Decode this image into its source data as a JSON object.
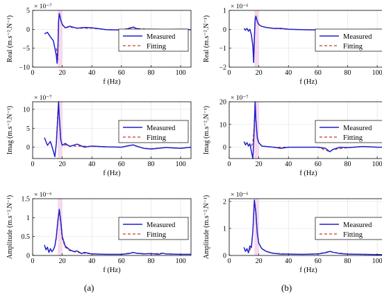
{
  "figure": {
    "panel_letters": [
      "(a)",
      "(b)"
    ],
    "legend": {
      "measured": "Measured",
      "fitting": "Fitting"
    },
    "colors": {
      "measured": "#1f1fcf",
      "fitting": "#c0392b",
      "band": "#f2b8e0"
    }
  },
  "chart_data": [
    {
      "type": "line",
      "column": "a",
      "ylabel": "Real (m.s⁻².N⁻¹)",
      "xlabel": "f (Hz)",
      "exponent": "× 10⁻⁷",
      "xlim": [
        0,
        107
      ],
      "ylim": [
        -10,
        5
      ],
      "xticks": [
        0,
        20,
        40,
        60,
        80,
        100
      ],
      "yticks": [
        -10,
        -5,
        0,
        5
      ],
      "grid": true,
      "legend_position": "right-center",
      "series": [
        {
          "name": "Measured",
          "x": [
            8,
            10,
            12,
            14,
            15,
            16,
            16.5,
            17,
            17.5,
            18,
            19,
            20,
            22,
            25,
            30,
            35,
            40,
            50,
            60,
            65,
            68,
            70,
            75,
            80,
            90,
            100,
            107
          ],
          "y": [
            -1.2,
            -0.8,
            -2,
            -3,
            -5,
            -7,
            -9,
            -6,
            2,
            4.2,
            2.5,
            1.3,
            0.4,
            0.8,
            0.3,
            0.5,
            0.4,
            -0.1,
            -0.2,
            0.2,
            0.6,
            0.2,
            -0.1,
            0,
            -0.1,
            0,
            -0.1
          ]
        },
        {
          "name": "Fitting",
          "x": [
            16,
            17,
            17.5,
            18,
            19,
            20,
            22,
            25,
            30,
            40,
            50,
            60,
            68,
            70,
            80,
            90,
            100,
            107
          ],
          "y": [
            -5,
            -8,
            2,
            4,
            2.5,
            1.2,
            0.4,
            0.6,
            0.3,
            0.3,
            -0.1,
            -0.2,
            0.6,
            0.2,
            0,
            -0.1,
            0,
            -0.1
          ]
        }
      ]
    },
    {
      "type": "line",
      "column": "a",
      "ylabel": "Imag (m.s⁻².N⁻¹)",
      "xlabel": "f (Hz)",
      "exponent": "× 10⁻⁷",
      "xlim": [
        0,
        107
      ],
      "ylim": [
        -3,
        12
      ],
      "xticks": [
        0,
        20,
        40,
        60,
        80,
        100
      ],
      "yticks": [
        0,
        5,
        10
      ],
      "grid": true,
      "legend_position": "right-center",
      "series": [
        {
          "name": "Measured",
          "x": [
            8,
            10,
            12,
            14,
            15,
            16,
            17,
            17.5,
            18,
            19,
            20,
            22,
            25,
            30,
            35,
            40,
            50,
            60,
            65,
            68,
            70,
            75,
            80,
            90,
            100,
            107
          ],
          "y": [
            2.5,
            0.5,
            1.5,
            -1,
            -2.5,
            1,
            8,
            12,
            8,
            2,
            0.5,
            1,
            0.2,
            0.8,
            0,
            0.3,
            0.1,
            0,
            0.4,
            0.6,
            0.3,
            -0.3,
            -0.5,
            -0.1,
            -0.3,
            0
          ]
        },
        {
          "name": "Fitting",
          "x": [
            16,
            17,
            17.5,
            18,
            19,
            20,
            22,
            25,
            30,
            40,
            50,
            60,
            68,
            70,
            75,
            80,
            90,
            100,
            107
          ],
          "y": [
            1,
            9,
            12,
            8,
            2,
            0.5,
            0.6,
            0.3,
            0.3,
            0.2,
            0.1,
            0,
            0.6,
            0.3,
            -0.3,
            -0.4,
            -0.1,
            -0.3,
            0
          ]
        }
      ]
    },
    {
      "type": "line",
      "column": "a",
      "ylabel": "Amplitude (m.s⁻².N⁻¹)",
      "xlabel": "f (Hz)",
      "exponent": "× 10⁻⁶",
      "xlim": [
        0,
        107
      ],
      "ylim": [
        0,
        1.5
      ],
      "xticks": [
        0,
        20,
        40,
        60,
        80,
        100
      ],
      "yticks": [
        0,
        0.5,
        1,
        1.5
      ],
      "grid": true,
      "legend_position": "right-center",
      "series": [
        {
          "name": "Measured",
          "x": [
            8,
            9,
            10,
            11,
            12,
            13,
            14,
            15,
            16,
            17,
            18,
            19,
            20,
            22,
            25,
            28,
            30,
            33,
            35,
            40,
            50,
            60,
            65,
            68,
            70,
            75,
            80,
            85,
            88,
            90,
            100,
            107
          ],
          "y": [
            0.28,
            0.15,
            0.22,
            0.08,
            0.18,
            0.1,
            0.15,
            0.25,
            0.5,
            0.9,
            1.22,
            0.9,
            0.5,
            0.25,
            0.15,
            0.1,
            0.12,
            0.05,
            0.08,
            0.04,
            0.03,
            0.03,
            0.05,
            0.08,
            0.06,
            0.04,
            0.05,
            0.03,
            0.06,
            0.04,
            0.03,
            0.03
          ]
        },
        {
          "name": "Fitting",
          "x": [
            14,
            15,
            16,
            17,
            18,
            19,
            20,
            22,
            25,
            30,
            40,
            50,
            60,
            68,
            70,
            80,
            88,
            90,
            100,
            107
          ],
          "y": [
            0.15,
            0.25,
            0.45,
            0.9,
            1.2,
            0.85,
            0.45,
            0.22,
            0.13,
            0.08,
            0.04,
            0.03,
            0.03,
            0.08,
            0.06,
            0.04,
            0.06,
            0.04,
            0.03,
            0.03
          ]
        }
      ]
    },
    {
      "type": "line",
      "column": "b",
      "ylabel": "Real (m.s⁻².N⁻¹)",
      "xlabel": "f (Hz)",
      "exponent": "× 10⁻⁶",
      "xlim": [
        0,
        107
      ],
      "ylim": [
        -2,
        1
      ],
      "xticks": [
        0,
        20,
        40,
        60,
        80,
        100
      ],
      "yticks": [
        -2,
        -1,
        0,
        1
      ],
      "grid": true,
      "legend_position": "right-center",
      "series": [
        {
          "name": "Measured",
          "x": [
            10,
            11,
            12,
            13,
            14,
            15,
            16,
            16.5,
            17,
            17.5,
            18,
            19,
            20,
            22,
            25,
            30,
            35,
            40,
            50,
            60,
            65,
            68,
            70,
            75,
            80,
            90,
            100,
            107
          ],
          "y": [
            0.05,
            -0.05,
            0.05,
            -0.1,
            0.0,
            -0.3,
            -0.9,
            -1.75,
            -0.5,
            0.5,
            0.7,
            0.4,
            0.25,
            0.15,
            0.1,
            0.05,
            0.05,
            0.0,
            -0.02,
            -0.03,
            -0.05,
            -0.12,
            -0.05,
            -0.03,
            -0.02,
            -0.02,
            -0.01,
            -0.01
          ]
        },
        {
          "name": "Fitting",
          "x": [
            15,
            16,
            16.5,
            17,
            17.5,
            18,
            19,
            20,
            22,
            25,
            30,
            40,
            50,
            60,
            68,
            70,
            80,
            90,
            100,
            107
          ],
          "y": [
            -0.3,
            -0.9,
            -1.7,
            -0.5,
            0.5,
            0.68,
            0.4,
            0.25,
            0.15,
            0.1,
            0.05,
            0.0,
            -0.02,
            -0.03,
            -0.12,
            -0.05,
            -0.02,
            -0.02,
            -0.01,
            -0.01
          ]
        }
      ]
    },
    {
      "type": "line",
      "column": "b",
      "ylabel": "Imag (m.s⁻².N⁻¹)",
      "xlabel": "f (Hz)",
      "exponent": "× 10⁻⁷",
      "xlim": [
        0,
        107
      ],
      "ylim": [
        -5,
        20
      ],
      "xticks": [
        0,
        20,
        40,
        60,
        80,
        100
      ],
      "yticks": [
        0,
        10,
        20
      ],
      "grid": true,
      "legend_position": "right-center",
      "series": [
        {
          "name": "Measured",
          "x": [
            10,
            11,
            12,
            13,
            14,
            15,
            16,
            16.5,
            17,
            17.5,
            18,
            19,
            20,
            22,
            25,
            30,
            35,
            40,
            50,
            60,
            65,
            68,
            70,
            75,
            80,
            90,
            100,
            107
          ],
          "y": [
            2.5,
            1,
            2,
            0.5,
            1.5,
            -2,
            -5,
            2,
            10,
            20,
            12,
            4,
            2,
            0.5,
            0.3,
            0,
            -0.5,
            0,
            0,
            0,
            -0.5,
            -2,
            -1,
            0,
            -0.2,
            0.3,
            0,
            0
          ]
        },
        {
          "name": "Fitting",
          "x": [
            15,
            16,
            17,
            17.5,
            18,
            19,
            20,
            22,
            25,
            30,
            40,
            50,
            60,
            68,
            70,
            80,
            90,
            100,
            107
          ],
          "y": [
            0.5,
            2,
            10,
            20,
            12,
            4,
            2,
            0.5,
            0.3,
            0,
            0,
            0,
            0,
            -2,
            -1,
            -0.2,
            0.3,
            0,
            0
          ]
        }
      ]
    },
    {
      "type": "line",
      "column": "b",
      "ylabel": "Amplitude (m.s⁻².N⁻¹)",
      "xlabel": "f (Hz)",
      "exponent": "× 10⁻⁶",
      "xlim": [
        0,
        107
      ],
      "ylim": [
        0,
        2.1
      ],
      "xticks": [
        0,
        20,
        40,
        60,
        80,
        100
      ],
      "yticks": [
        0,
        1,
        2
      ],
      "grid": true,
      "legend_position": "right-center",
      "series": [
        {
          "name": "Measured",
          "x": [
            10,
            11,
            12,
            13,
            14,
            15,
            16,
            17,
            18,
            19,
            20,
            22,
            25,
            28,
            30,
            35,
            40,
            50,
            60,
            65,
            68,
            70,
            75,
            80,
            90,
            100,
            107
          ],
          "y": [
            0.3,
            0.15,
            0.25,
            0.1,
            0.35,
            0.3,
            0.9,
            2.05,
            1.6,
            0.8,
            0.45,
            0.25,
            0.15,
            0.1,
            0.08,
            0.05,
            0.05,
            0.04,
            0.06,
            0.1,
            0.15,
            0.12,
            0.07,
            0.05,
            0.04,
            0.03,
            0.03
          ]
        },
        {
          "name": "Fitting",
          "x": [
            14,
            15,
            16,
            17,
            18,
            19,
            20,
            22,
            25,
            30,
            40,
            50,
            60,
            68,
            70,
            80,
            90,
            100,
            107
          ],
          "y": [
            0.2,
            0.35,
            0.9,
            2.05,
            1.55,
            0.8,
            0.45,
            0.25,
            0.15,
            0.08,
            0.05,
            0.04,
            0.06,
            0.15,
            0.12,
            0.05,
            0.04,
            0.03,
            0.03
          ]
        }
      ]
    }
  ]
}
